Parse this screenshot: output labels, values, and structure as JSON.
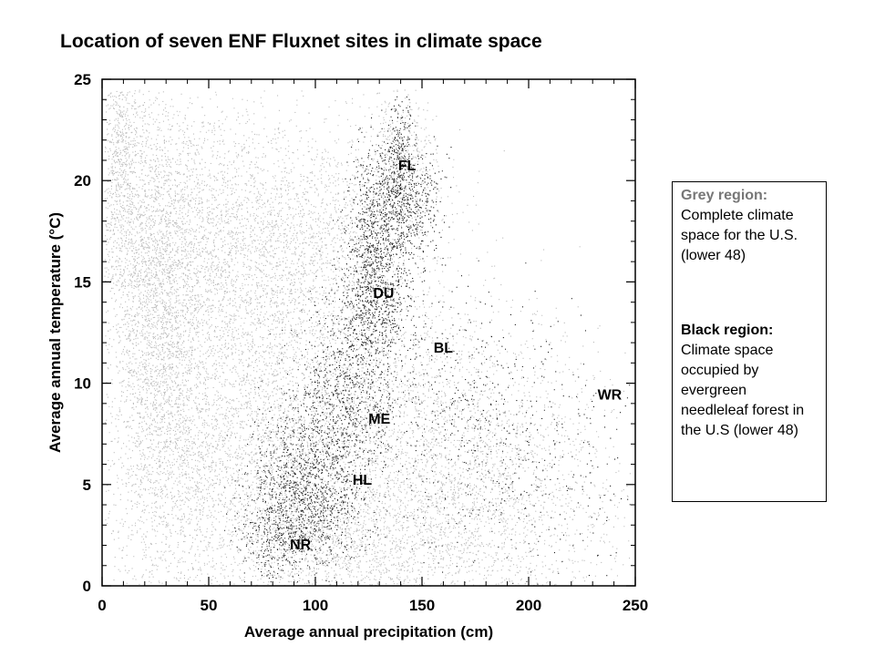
{
  "title": "Location of seven ENF Fluxnet sites in climate space",
  "legend": {
    "grey_heading": "Grey region:",
    "grey_text": "Complete climate space for the U.S. (lower 48)",
    "black_heading": "Black region:",
    "black_text": "Climate space occupied by evergreen needleleaf forest in the U.S (lower 48)"
  },
  "colors": {
    "grey_region": "#bdbdbd",
    "black_region": "#222222",
    "grey_heading": "#777777"
  },
  "chart_data": {
    "type": "scatter",
    "title": "Location of seven ENF Fluxnet sites in climate space",
    "xlabel": "Average annual precipitation (cm)",
    "ylabel": "Average annual temperature (°C)",
    "xlim": [
      0,
      250
    ],
    "ylim": [
      0,
      25
    ],
    "xticks": [
      0,
      50,
      100,
      150,
      200,
      250
    ],
    "yticks": [
      0,
      5,
      10,
      15,
      20,
      25
    ],
    "grid": false,
    "series": [
      {
        "name": "Grey region",
        "description": "Complete climate space for the U.S. (lower 48)"
      },
      {
        "name": "Black region",
        "description": "Climate space occupied by evergreen needleleaf forest in the U.S (lower 48)"
      }
    ],
    "sites": [
      {
        "label": "FL",
        "x": 143,
        "y": 20.5
      },
      {
        "label": "DU",
        "x": 132,
        "y": 14.2
      },
      {
        "label": "BL",
        "x": 160,
        "y": 11.5
      },
      {
        "label": "WR",
        "x": 238,
        "y": 9.2
      },
      {
        "label": "ME",
        "x": 130,
        "y": 8.0
      },
      {
        "label": "HL",
        "x": 122,
        "y": 5.0
      },
      {
        "label": "NR",
        "x": 93,
        "y": 1.8
      }
    ]
  }
}
